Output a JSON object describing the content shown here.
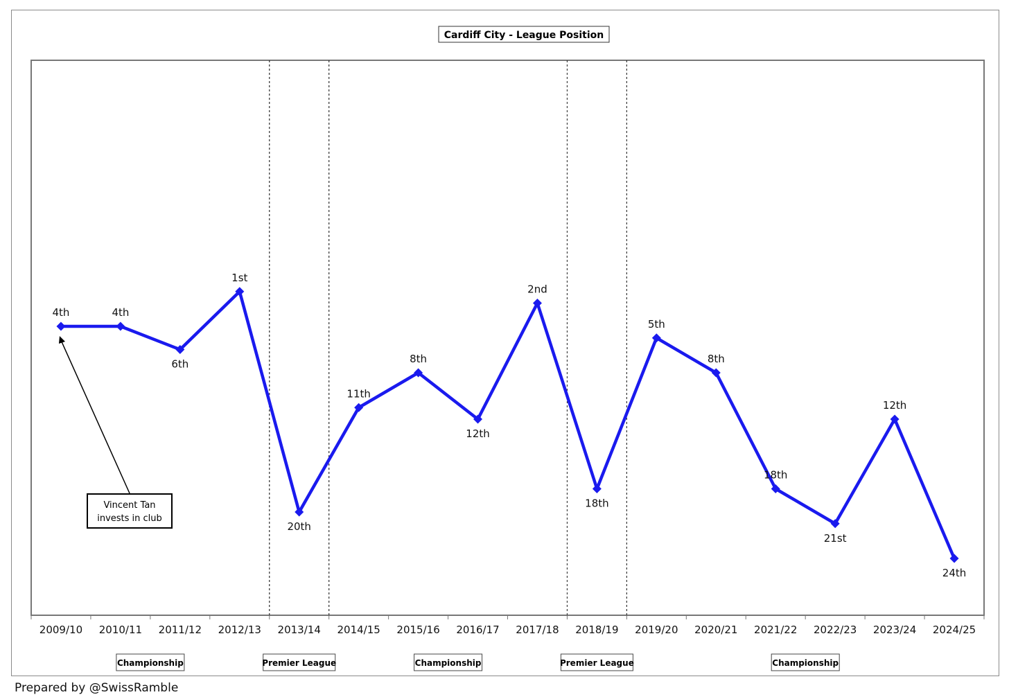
{
  "chart_data": {
    "type": "line",
    "title": "Cardiff City - League Position",
    "categories": [
      "2009/10",
      "2010/11",
      "2011/12",
      "2012/13",
      "2013/14",
      "2014/15",
      "2015/16",
      "2016/17",
      "2017/18",
      "2018/19",
      "2019/20",
      "2020/21",
      "2021/22",
      "2022/23",
      "2023/24",
      "2024/25"
    ],
    "series": [
      {
        "values": [
          4,
          4,
          6,
          1,
          20,
          11,
          8,
          12,
          2,
          18,
          5,
          8,
          18,
          21,
          12,
          24
        ],
        "labels": [
          "4th",
          "4th",
          "6th",
          "1st",
          "20th",
          "11th",
          "8th",
          "12th",
          "2nd",
          "18th",
          "5th",
          "8th",
          "18th",
          "21st",
          "12th",
          "24th"
        ],
        "color": "#1a1aee"
      }
    ],
    "leagues": [
      {
        "name": "Championship",
        "from": "2009/10",
        "to": "2012/13"
      },
      {
        "name": "Premier League",
        "from": "2013/14",
        "to": "2013/14"
      },
      {
        "name": "Championship",
        "from": "2014/15",
        "to": "2017/18"
      },
      {
        "name": "Premier League",
        "from": "2018/19",
        "to": "2018/19"
      },
      {
        "name": "Championship",
        "from": "2019/20",
        "to": "2024/25"
      }
    ],
    "annotation": {
      "lines": [
        "Vincent Tan",
        "invests in club"
      ],
      "points_to": "2009/10"
    },
    "grid": false,
    "legend": "none"
  },
  "footer": "Prepared by @SwissRamble"
}
